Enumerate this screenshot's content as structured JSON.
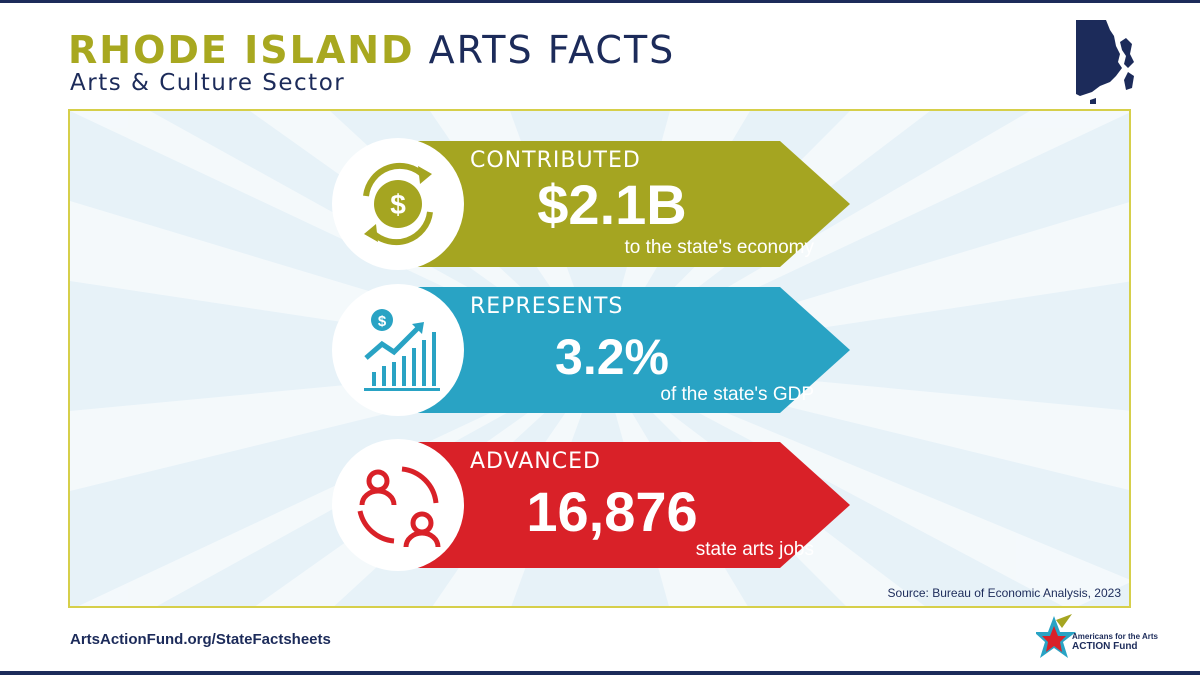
{
  "header": {
    "title_accent": "RHODE ISLAND",
    "title_rest": "ARTS FACTS",
    "subtitle": "Arts & Culture Sector"
  },
  "stats": [
    {
      "label": "CONTRIBUTED",
      "value": "$2.1B",
      "description": "to the state's economy",
      "color": "#a5a521",
      "icon": "dollar-cycle-icon"
    },
    {
      "label": "REPRESENTS",
      "value": "3.2%",
      "description": "of the state's GDP",
      "color": "#29a3c4",
      "icon": "growth-chart-icon"
    },
    {
      "label": "ADVANCED",
      "value": "16,876",
      "description": "state arts jobs",
      "color": "#d92128",
      "icon": "people-cycle-icon"
    }
  ],
  "source": "Source: Bureau of Economic Analysis, 2023",
  "footer": {
    "url": "ArtsActionFund.org/StateFactsheets",
    "logo_line1": "Americans for the Arts",
    "logo_line2": "ACTION Fund"
  },
  "colors": {
    "navy": "#1c2b5a",
    "olive": "#a8a820",
    "panel_border": "#d6cf4a",
    "panel_bg": "#e7f2f8"
  }
}
